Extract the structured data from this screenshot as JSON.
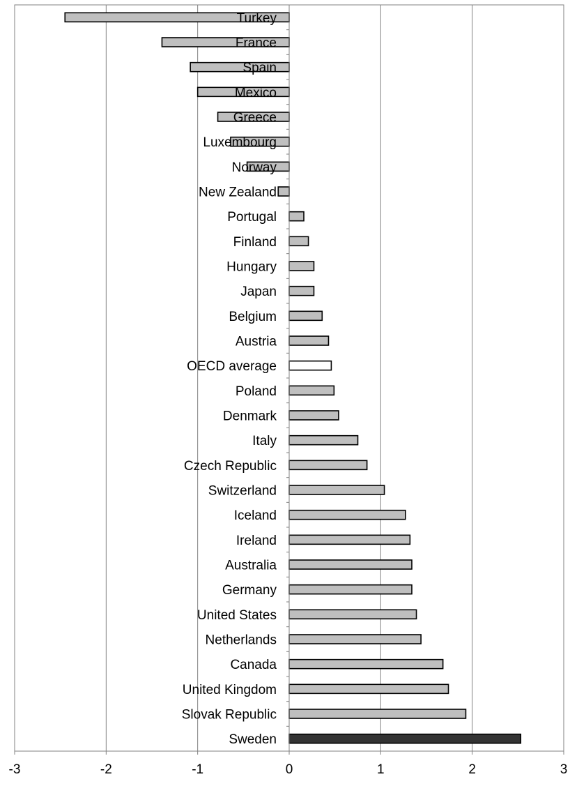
{
  "chart_data": {
    "type": "bar",
    "orientation": "horizontal",
    "title": "",
    "xlabel": "",
    "ylabel": "",
    "xlim": [
      -3,
      3
    ],
    "x_ticks": [
      -3,
      -2,
      -1,
      0,
      1,
      2,
      3
    ],
    "x_tick_labels": [
      "-3",
      "-2",
      "-1",
      "0",
      "1",
      "2",
      "3"
    ],
    "grid": "vertical",
    "legend": "none",
    "categories": [
      "Turkey",
      "France",
      "Spain",
      "Mexico",
      "Greece",
      "Luxembourg",
      "Norway",
      "New Zealand",
      "Portugal",
      "Finland",
      "Hungary",
      "Japan",
      "Belgium",
      "Austria",
      "OECD average",
      "Poland",
      "Denmark",
      "Italy",
      "Czech Republic",
      "Switzerland",
      "Iceland",
      "Ireland",
      "Australia",
      "Germany",
      "United States",
      "Netherlands",
      "Canada",
      "United Kingdom",
      "Slovak Republic",
      "Sweden"
    ],
    "values": [
      -2.45,
      -1.39,
      -1.08,
      -1.0,
      -0.78,
      -0.64,
      -0.46,
      -0.12,
      0.16,
      0.21,
      0.27,
      0.27,
      0.36,
      0.43,
      0.46,
      0.49,
      0.54,
      0.75,
      0.85,
      1.04,
      1.27,
      1.32,
      1.34,
      1.34,
      1.39,
      1.44,
      1.68,
      1.74,
      1.93,
      2.53
    ],
    "highlight": {
      "OECD average": "#ffffff",
      "Sweden": "#333333"
    },
    "colors": {
      "bar": "#bfbfbf",
      "bar_stroke": "#000000",
      "grid": "#808080",
      "axis": "#808080"
    }
  }
}
